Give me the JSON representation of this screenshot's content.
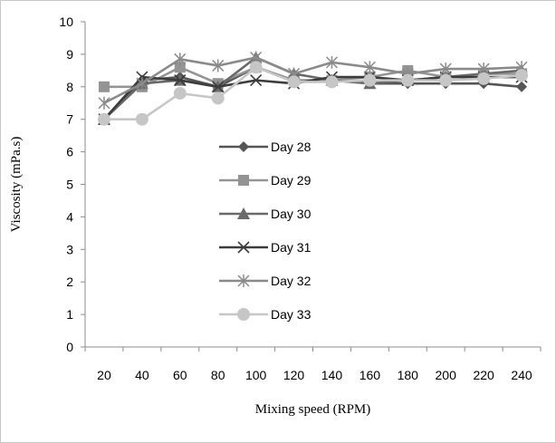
{
  "chart_data": {
    "type": "line",
    "title": "",
    "xlabel": "Mixing speed (RPM)",
    "ylabel": "Viscosity (mPa.s)",
    "x": [
      20,
      40,
      60,
      80,
      100,
      120,
      140,
      160,
      180,
      200,
      220,
      240
    ],
    "ylim": [
      0,
      10
    ],
    "yticks": [
      0,
      1,
      2,
      3,
      4,
      5,
      6,
      7,
      8,
      9,
      10
    ],
    "grid": false,
    "legend_position": "center-left",
    "series": [
      {
        "name": "Day 28",
        "marker": "diamond",
        "color": "#555555",
        "values": [
          7.0,
          8.2,
          8.3,
          8.0,
          8.6,
          8.2,
          8.2,
          8.1,
          8.1,
          8.1,
          8.1,
          8.0
        ]
      },
      {
        "name": "Day 29",
        "marker": "square",
        "color": "#949494",
        "values": [
          8.0,
          8.0,
          8.6,
          8.1,
          8.6,
          8.2,
          8.2,
          8.3,
          8.5,
          8.3,
          8.4,
          8.4
        ]
      },
      {
        "name": "Day 30",
        "marker": "triangle",
        "color": "#6a6a6a",
        "values": [
          7.0,
          8.1,
          8.2,
          8.0,
          8.9,
          8.4,
          8.2,
          8.1,
          8.2,
          8.3,
          8.4,
          8.5
        ]
      },
      {
        "name": "Day 31",
        "marker": "x",
        "color": "#3c3c3c",
        "values": [
          7.0,
          8.3,
          8.2,
          8.0,
          8.2,
          8.1,
          8.3,
          8.3,
          8.2,
          8.3,
          8.3,
          8.3
        ]
      },
      {
        "name": "Day 32",
        "marker": "star",
        "color": "#8a8a8a",
        "values": [
          7.5,
          8.1,
          8.85,
          8.65,
          8.9,
          8.4,
          8.75,
          8.6,
          8.4,
          8.55,
          8.55,
          8.6
        ]
      },
      {
        "name": "Day 33",
        "marker": "circle",
        "color": "#c6c6c6",
        "values": [
          7.0,
          7.0,
          7.8,
          7.65,
          8.6,
          8.15,
          8.15,
          8.2,
          8.2,
          8.2,
          8.25,
          8.35
        ]
      }
    ]
  }
}
